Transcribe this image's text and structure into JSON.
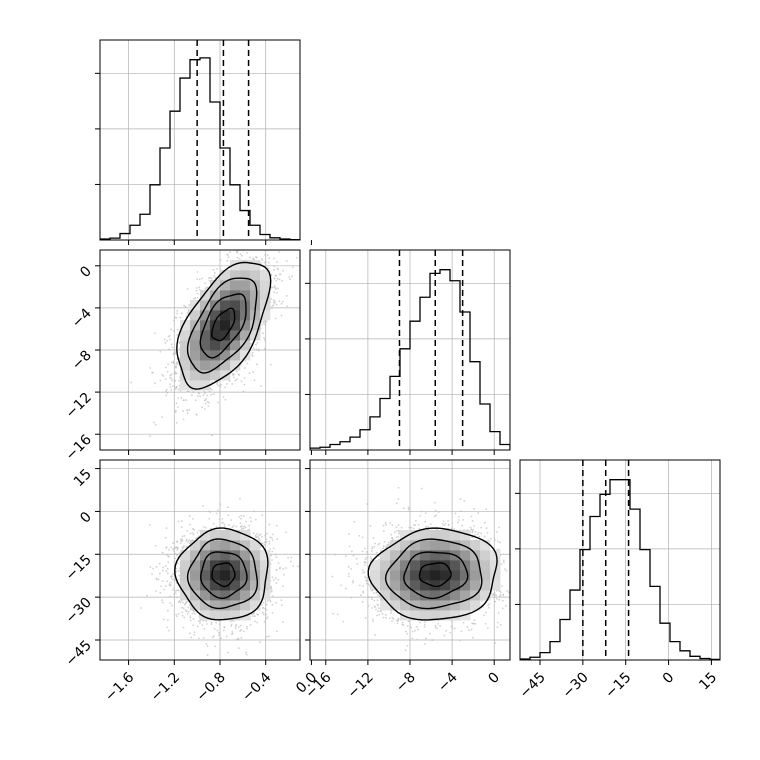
{
  "chart_data": {
    "type": "corner",
    "title": "",
    "parameters": [
      {
        "label": "",
        "range": [
          -1.85,
          -0.1
        ],
        "ticks": [
          -1.6,
          -1.2,
          -0.8,
          -0.4,
          0.0
        ],
        "tick_labels": [
          "−1.6",
          "−1.2",
          "−0.8",
          "−0.4",
          "0.0"
        ],
        "quantiles": [
          -1.0,
          -0.77,
          -0.55
        ],
        "mean": -0.77,
        "sd": 0.2
      },
      {
        "label": "",
        "range": [
          -17.5,
          1.5
        ],
        "ticks": [
          -16,
          -12,
          -8,
          -4,
          0
        ],
        "tick_labels": [
          "−16",
          "−12",
          "−8",
          "−4",
          "0"
        ],
        "quantiles": [
          -9.0,
          -5.6,
          -3.0
        ],
        "mean": -5.6,
        "sd": 3.0
      },
      {
        "label": "",
        "range": [
          -52,
          18
        ],
        "ticks": [
          -45,
          -30,
          -15,
          0,
          15
        ],
        "tick_labels": [
          "−45",
          "−30",
          "−15",
          "0",
          "15"
        ],
        "quantiles": [
          -30.0,
          -22.0,
          -14.0
        ],
        "mean": -22.0,
        "sd": 8.0
      }
    ],
    "histograms": [
      {
        "bins": 20,
        "counts": [
          0.005,
          0.01,
          0.035,
          0.08,
          0.14,
          0.3,
          0.5,
          0.7,
          0.88,
          0.98,
          0.99,
          0.75,
          0.5,
          0.3,
          0.16,
          0.08,
          0.03,
          0.012,
          0.005,
          0.002
        ]
      },
      {
        "bins": 20,
        "counts": [
          0.01,
          0.015,
          0.03,
          0.045,
          0.07,
          0.11,
          0.18,
          0.28,
          0.4,
          0.55,
          0.7,
          0.83,
          0.96,
          0.98,
          0.92,
          0.75,
          0.48,
          0.25,
          0.1,
          0.03
        ]
      },
      {
        "bins": 20,
        "counts": [
          0.005,
          0.015,
          0.04,
          0.1,
          0.22,
          0.38,
          0.6,
          0.78,
          0.9,
          0.98,
          0.98,
          0.82,
          0.6,
          0.4,
          0.2,
          0.1,
          0.05,
          0.02,
          0.008,
          0.003
        ]
      }
    ],
    "correlations": {
      "0-1": 0.55,
      "0-2": 0.0,
      "1-2": 0.05
    },
    "contour_levels": [
      "0.5σ",
      "1σ",
      "1.5σ",
      "2σ"
    ],
    "grid": true,
    "colors": {
      "line": "#000000",
      "points": "#bdbdbd",
      "grid": "#b0b0b0"
    }
  }
}
